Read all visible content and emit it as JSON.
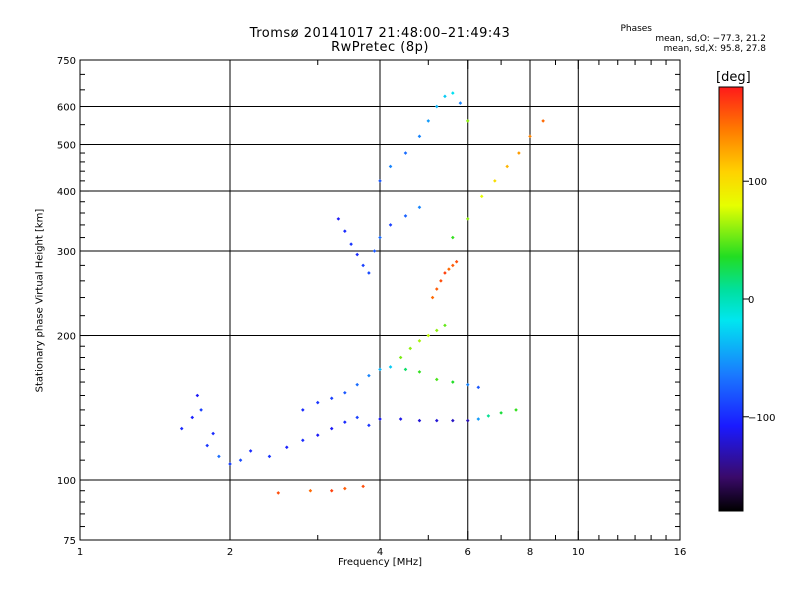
{
  "title": {
    "line1": "Tromsø 20141017 21:48:00–21:49:43",
    "line2": "RwPretec (8p)"
  },
  "stats": {
    "heading": "Phases",
    "line_o": "mean, sd,O: −77.3, 21.2",
    "line_x": "mean, sd,X:  95.8, 27.8"
  },
  "colorbar": {
    "label": "[deg]",
    "ticks": [
      {
        "value": 100,
        "label": "100"
      },
      {
        "value": 0,
        "label": "0"
      },
      {
        "value": -100,
        "label": "−100"
      }
    ]
  },
  "chart_data": {
    "type": "scatter",
    "title": "Tromsø 20141017 21:48:00–21:49:43\nRwPretec (8p)",
    "xlabel": "Frequency [MHz]",
    "ylabel": "Stationary phase Virtual Height [km]",
    "xscale": "log",
    "yscale": "log",
    "xlim": [
      1,
      16
    ],
    "ylim": [
      75,
      750
    ],
    "x_ticks": [
      1,
      2,
      4,
      6,
      8,
      10,
      16
    ],
    "y_ticks": [
      75,
      100,
      200,
      300,
      400,
      500,
      600,
      750
    ],
    "grid": true,
    "colorscale": {
      "label": "[deg]",
      "range": [
        -180,
        180
      ],
      "colormap": "rainbow"
    },
    "series": [
      {
        "x": [
          1.6,
          1.68,
          1.72,
          1.75,
          1.8,
          1.85,
          1.9,
          2.0,
          2.1,
          2.2,
          2.4,
          2.6,
          2.8,
          3.0,
          3.2,
          3.4,
          3.6,
          3.8
        ],
        "y": [
          128,
          135,
          150,
          140,
          118,
          125,
          112,
          108,
          110,
          115,
          112,
          117,
          121,
          124,
          128,
          132,
          135,
          130
        ],
        "phase": [
          -100,
          -105,
          -110,
          -90,
          -95,
          -100,
          -70,
          -90,
          -85,
          -100,
          -95,
          -105,
          -100,
          -110,
          -110,
          -100,
          -90,
          -95
        ]
      },
      {
        "x": [
          2.8,
          3.0,
          3.2,
          3.4,
          3.6,
          3.8,
          4.0,
          4.2,
          4.5,
          4.8,
          5.2,
          5.6,
          6.0,
          6.3
        ],
        "y": [
          140,
          145,
          148,
          152,
          158,
          165,
          170,
          172,
          170,
          168,
          162,
          160,
          158,
          156
        ],
        "phase": [
          -100,
          -95,
          -90,
          -80,
          -70,
          -60,
          -40,
          -30,
          20,
          40,
          45,
          35,
          -60,
          -80
        ]
      },
      {
        "x": [
          4.0,
          4.4,
          4.8,
          5.2,
          5.6,
          6.0,
          6.3,
          6.6,
          7.0,
          7.5
        ],
        "y": [
          134,
          134,
          133,
          133,
          133,
          133,
          134,
          136,
          138,
          140
        ],
        "phase": [
          -110,
          -115,
          -120,
          -120,
          -125,
          -130,
          -50,
          10,
          30,
          40
        ]
      },
      {
        "x": [
          3.3,
          3.4,
          3.5,
          3.6,
          3.7,
          3.8,
          3.9,
          4.0,
          4.2,
          4.5,
          4.8
        ],
        "y": [
          350,
          330,
          310,
          295,
          280,
          270,
          300,
          320,
          340,
          355,
          370
        ],
        "phase": [
          -110,
          -100,
          -95,
          -100,
          -90,
          -85,
          -80,
          -70,
          -90,
          -75,
          -60
        ]
      },
      {
        "x": [
          4.0,
          4.2,
          4.5,
          4.8,
          5.0,
          5.2,
          5.4,
          5.6,
          5.8,
          6.0
        ],
        "y": [
          420,
          450,
          480,
          520,
          560,
          600,
          630,
          640,
          610,
          560
        ],
        "phase": [
          -80,
          -60,
          -70,
          -60,
          -50,
          -40,
          -30,
          -20,
          -60,
          60
        ]
      },
      {
        "x": [
          5.6,
          6.0,
          6.4,
          6.8,
          7.2,
          7.6,
          8.0,
          8.5
        ],
        "y": [
          320,
          350,
          390,
          420,
          450,
          480,
          520,
          560
        ],
        "phase": [
          40,
          60,
          80,
          100,
          120,
          130,
          140,
          150
        ]
      },
      {
        "x": [
          5.1,
          5.2,
          5.3,
          5.4,
          5.5,
          5.6,
          5.7
        ],
        "y": [
          240,
          250,
          260,
          270,
          275,
          280,
          285
        ],
        "phase": [
          150,
          155,
          160,
          165,
          150,
          155,
          160
        ]
      },
      {
        "x": [
          4.4,
          4.6,
          4.8,
          5.0,
          5.2,
          5.4
        ],
        "y": [
          180,
          188,
          195,
          200,
          205,
          210
        ],
        "phase": [
          55,
          60,
          65,
          70,
          60,
          50
        ]
      },
      {
        "x": [
          2.5,
          2.9,
          3.2,
          3.4,
          3.7
        ],
        "y": [
          94,
          95,
          95,
          96,
          97
        ],
        "phase": [
          160,
          150,
          165,
          155,
          160
        ]
      }
    ]
  }
}
